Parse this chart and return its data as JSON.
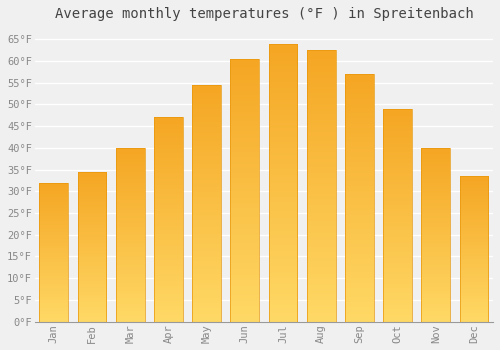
{
  "title": "Average monthly temperatures (°F ) in Spreitenbach",
  "months": [
    "Jan",
    "Feb",
    "Mar",
    "Apr",
    "May",
    "Jun",
    "Jul",
    "Aug",
    "Sep",
    "Oct",
    "Nov",
    "Dec"
  ],
  "values": [
    32,
    34.5,
    40,
    47,
    54.5,
    60.5,
    64,
    62.5,
    57,
    49,
    40,
    33.5
  ],
  "bar_color_bottom": "#F5A623",
  "bar_color_top": "#FFD966",
  "ylim": [
    0,
    68
  ],
  "yticks": [
    0,
    5,
    10,
    15,
    20,
    25,
    30,
    35,
    40,
    45,
    50,
    55,
    60,
    65
  ],
  "ytick_labels": [
    "0°F",
    "5°F",
    "10°F",
    "15°F",
    "20°F",
    "25°F",
    "30°F",
    "35°F",
    "40°F",
    "45°F",
    "50°F",
    "55°F",
    "60°F",
    "65°F"
  ],
  "background_color": "#f0f0f0",
  "grid_color": "#ffffff",
  "title_fontsize": 10,
  "tick_fontsize": 7.5,
  "tick_color": "#888888"
}
